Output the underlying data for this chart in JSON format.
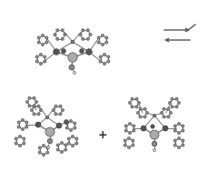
{
  "background_color": "#ffffff",
  "figure_width": 2.3,
  "figure_height": 1.89,
  "dpi": 100,
  "arrow_color": "#555555",
  "dc": "#555555",
  "mc": "#888888",
  "lc": "#cccccc",
  "rc": "#aaaaaa",
  "oc": "#777777",
  "bc": "#777777"
}
